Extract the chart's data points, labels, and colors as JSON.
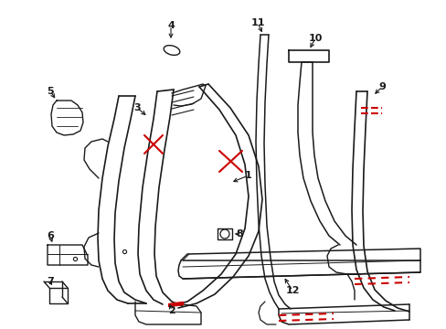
{
  "bg_color": "#ffffff",
  "line_color": "#1a1a1a",
  "red_color": "#cc0000",
  "fig_width": 4.89,
  "fig_height": 3.6,
  "dpi": 100
}
